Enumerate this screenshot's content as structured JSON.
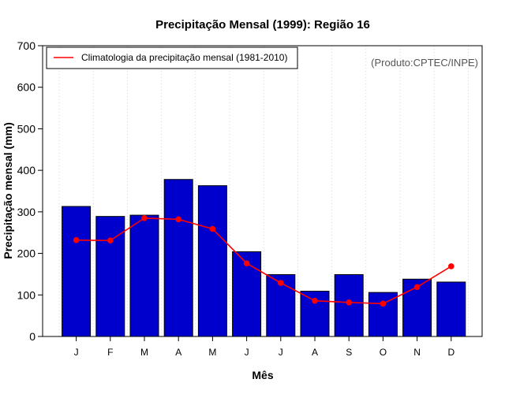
{
  "chart_data": {
    "type": "bar",
    "title": "Precipitação Mensal (1999): Região 16",
    "xlabel": "Mês",
    "ylabel": "Precipitação mensal (mm)",
    "ylim": [
      0,
      700
    ],
    "yticks": [
      0,
      100,
      200,
      300,
      400,
      500,
      600,
      700
    ],
    "grid": "vertical dotted",
    "categories": [
      "J",
      "F",
      "M",
      "A",
      "M",
      "J",
      "J",
      "A",
      "S",
      "O",
      "N",
      "D"
    ],
    "series": [
      {
        "name": "Precipitação mensal (1999)",
        "kind": "bar",
        "color": "#0000cd",
        "values": [
          313,
          289,
          292,
          378,
          363,
          204,
          149,
          109,
          149,
          106,
          138,
          131
        ]
      },
      {
        "name": "Climatologia da precipitação mensal (1981-2010)",
        "kind": "line",
        "color": "#ff0000",
        "values": [
          232,
          231,
          285,
          282,
          259,
          176,
          129,
          86,
          82,
          79,
          119,
          169
        ]
      }
    ],
    "legend": {
      "position": "top-left",
      "entries": [
        "Climatologia da precipitação mensal (1981-2010)"
      ]
    },
    "annotation": "(Produto:CPTEC/INPE)"
  }
}
